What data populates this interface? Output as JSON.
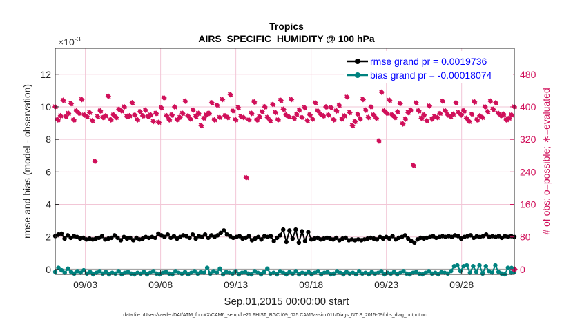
{
  "chart_data": {
    "type": "line",
    "title": "Tropics",
    "subtitle": "AIRS_SPECIFIC_HUMIDITY @ 100 hPa",
    "xlabel": "Sep.01,2015 00:00:00 start",
    "ylabel_left": "rmse and bias (model - observation)",
    "ylabel_right": "# of obs: o=possible; ∗=evaluated",
    "y_exponent_label": "×10",
    "y_exponent_power": "-3",
    "xlim": [
      1,
      31.5
    ],
    "ylim_left": [
      -0.3,
      13.6
    ],
    "ylim_right": [
      -0.3,
      13.6
    ],
    "x_ticks": [
      {
        "value": 3,
        "label": "09/03"
      },
      {
        "value": 8,
        "label": "09/08"
      },
      {
        "value": 13,
        "label": "09/13"
      },
      {
        "value": 18,
        "label": "09/18"
      },
      {
        "value": 23,
        "label": "09/23"
      },
      {
        "value": 28,
        "label": "09/28"
      }
    ],
    "y_ticks_left": [
      {
        "value": 0,
        "label": "0"
      },
      {
        "value": 2,
        "label": "2"
      },
      {
        "value": 4,
        "label": "4"
      },
      {
        "value": 6,
        "label": "6"
      },
      {
        "value": 8,
        "label": "8"
      },
      {
        "value": 10,
        "label": "10"
      },
      {
        "value": 12,
        "label": "12"
      }
    ],
    "y_ticks_right": [
      {
        "value": 0,
        "label": "0"
      },
      {
        "value": 2,
        "label": "80"
      },
      {
        "value": 4,
        "label": "160"
      },
      {
        "value": 6,
        "label": "240"
      },
      {
        "value": 8,
        "label": "320"
      },
      {
        "value": 10,
        "label": "400"
      },
      {
        "value": 12,
        "label": "480"
      }
    ],
    "legend_position": "top-right",
    "colors": {
      "rmse": "#000000",
      "bias": "#00827f",
      "obs": "#d0105a",
      "zero_line": "#a6a6a6",
      "grid": "#f2c6d6"
    },
    "series": [
      {
        "name": "rmse grand pr = 0.0019736",
        "key": "rmse",
        "values": [
          2.05,
          2.15,
          2.2,
          1.9,
          2.1,
          1.95,
          2.05,
          2.0,
          1.9,
          1.95,
          1.85,
          1.9,
          1.85,
          1.9,
          1.95,
          2.05,
          1.85,
          1.9,
          1.95,
          2.1,
          1.95,
          1.8,
          2.0,
          1.9,
          1.95,
          1.8,
          1.95,
          1.85,
          1.9,
          2.0,
          1.95,
          2.0,
          1.95,
          2.2,
          2.1,
          2.0,
          2.15,
          1.95,
          2.05,
          1.9,
          2.0,
          2.1,
          2.05,
          1.95,
          2.15,
          1.9,
          2.05,
          2.0,
          2.15,
          1.95,
          2.1,
          2.0,
          2.1,
          2.25,
          2.4,
          2.15,
          2.05,
          1.95,
          2.0,
          2.05,
          1.9,
          1.95,
          2.05,
          1.8,
          1.9,
          2.0,
          1.85,
          2.05,
          2.0,
          2.05,
          1.75,
          1.95,
          2.1,
          2.45,
          1.7,
          2.4,
          1.9,
          2.45,
          1.65,
          2.35,
          1.75,
          2.3,
          1.85,
          1.9,
          1.95,
          1.85,
          1.9,
          1.95,
          1.9,
          1.85,
          1.95,
          1.8,
          1.9,
          1.95,
          1.8,
          1.85,
          1.8,
          1.85,
          1.8,
          1.85,
          1.9,
          1.95,
          1.9,
          1.85,
          2.0,
          1.9,
          2.0,
          1.9,
          2.05,
          1.85,
          1.95,
          2.0,
          2.1,
          1.9,
          1.75,
          1.65,
          1.85,
          1.95,
          1.9,
          1.95,
          2.0,
          2.05,
          1.95,
          2.0,
          2.05,
          2.0,
          2.05,
          2.0,
          2.1,
          2.05,
          1.9,
          2.0,
          2.05,
          2.1,
          1.95,
          2.05,
          2.0,
          2.05,
          2.15,
          2.0,
          2.05,
          2.0,
          2.05,
          1.95,
          2.05,
          2.0,
          2.05,
          2.0
        ]
      },
      {
        "name": "bias grand pr = -0.00018074",
        "key": "bias",
        "values": [
          -0.15,
          0.1,
          -0.05,
          -0.2,
          0.05,
          -0.15,
          -0.25,
          -0.1,
          -0.2,
          -0.05,
          -0.25,
          -0.15,
          -0.3,
          -0.2,
          -0.1,
          -0.25,
          -0.15,
          -0.3,
          -0.2,
          -0.25,
          -0.1,
          -0.3,
          -0.2,
          -0.15,
          -0.25,
          -0.3,
          -0.2,
          -0.25,
          -0.15,
          -0.3,
          -0.2,
          -0.1,
          -0.25,
          -0.3,
          -0.2,
          -0.15,
          -0.25,
          -0.3,
          -0.1,
          -0.2,
          -0.25,
          -0.15,
          -0.3,
          -0.2,
          -0.1,
          -0.25,
          -0.15,
          -0.2,
          0.1,
          -0.25,
          -0.1,
          -0.2,
          0.05,
          -0.3,
          -0.15,
          -0.2,
          -0.25,
          -0.1,
          -0.3,
          -0.2,
          -0.15,
          -0.25,
          -0.3,
          -0.1,
          -0.2,
          -0.3,
          -0.15,
          0.05,
          -0.25,
          -0.2,
          -0.3,
          -0.1,
          -0.2,
          -0.3,
          -0.15,
          -0.25,
          -0.1,
          -0.3,
          -0.2,
          -0.25,
          -0.15,
          -0.3,
          -0.2,
          -0.1,
          -0.3,
          -0.2,
          -0.15,
          -0.3,
          -0.25,
          -0.1,
          -0.2,
          -0.3,
          -0.15,
          -0.25,
          -0.2,
          -0.3,
          -0.1,
          -0.25,
          -0.2,
          -0.3,
          -0.15,
          -0.25,
          -0.2,
          -0.1,
          -0.3,
          -0.2,
          -0.25,
          -0.15,
          -0.3,
          -0.2,
          -0.1,
          -0.25,
          -0.3,
          -0.2,
          -0.15,
          -0.25,
          -0.3,
          -0.2,
          -0.1,
          -0.25,
          -0.2,
          -0.3,
          -0.15,
          -0.2,
          -0.25,
          -0.1,
          0.2,
          0.25,
          -0.1,
          0.2,
          0.25,
          -0.2,
          0.2,
          -0.15,
          0.25,
          -0.25,
          0.2,
          -0.1,
          -0.2,
          0.25,
          -0.15,
          -0.25,
          -0.3,
          0.1,
          -0.2,
          -0.15
        ]
      },
      {
        "name": "obs",
        "key": "obs",
        "right_axis": true,
        "values": [
          10.0,
          9.2,
          9.45,
          10.4,
          9.4,
          9.6,
          10.2,
          9.2,
          9.75,
          9.6,
          10.45,
          9.5,
          9.4,
          9.65,
          9.15,
          6.65,
          9.4,
          9.75,
          9.35,
          9.45,
          10.65,
          9.2,
          9.5,
          9.35,
          9.85,
          9.75,
          10.0,
          9.4,
          9.45,
          10.25,
          9.5,
          9.2,
          9.7,
          9.45,
          9.8,
          9.4,
          9.5,
          9.1,
          9.6,
          9.05,
          9.95,
          10.55,
          9.45,
          9.2,
          9.5,
          10.0,
          9.2,
          9.35,
          9.6,
          10.35,
          9.45,
          9.25,
          9.8,
          9.4,
          9.6,
          8.85,
          9.3,
          9.5,
          9.6,
          10.25,
          9.2,
          10.1,
          9.35,
          10.45,
          9.45,
          9.35,
          10.75,
          9.75,
          9.2,
          9.95,
          9.4,
          9.35,
          5.65,
          9.2,
          9.6,
          10.3,
          9.2,
          9.4,
          9.7,
          10.0,
          9.35,
          9.15,
          10.15,
          9.65,
          9.2,
          10.4,
          9.85,
          9.5,
          9.4,
          10.45,
          9.3,
          9.55,
          9.8,
          9.35,
          9.95,
          9.15,
          9.5,
          9.25,
          10.25,
          9.75,
          9.55,
          9.45,
          10.0,
          9.5,
          9.95,
          9.2,
          9.75,
          10.1,
          9.25,
          9.45,
          10.6,
          9.65,
          8.85,
          9.1,
          9.55,
          9.25,
          10.45,
          9.8,
          9.35,
          10.0,
          9.5,
          9.3,
          7.9,
          10.9,
          9.75,
          9.6,
          10.4,
          9.5,
          9.35,
          9.7,
          10.2,
          8.95,
          9.25,
          9.65,
          9.8,
          6.4,
          10.25,
          9.75,
          9.3,
          9.5,
          9.15,
          10.05,
          9.25,
          9.4,
          9.35,
          9.6,
          10.35,
          9.75,
          9.5,
          9.4,
          9.55,
          10.25,
          9.65,
          9.5,
          9.75,
          9.3,
          9.1,
          9.55,
          10.3,
          9.2,
          9.45,
          9.35,
          10.0,
          9.7,
          10.35,
          9.85,
          10.25,
          9.6,
          9.45,
          9.55,
          9.2,
          9.3,
          9.5,
          10.0
        ]
      }
    ]
  },
  "footer_text": "data file: /Users/raeder/DAI/ATM_forcXX/CAM6_setup/f.e21.FHIST_BGC.f09_025.CAM6assim.011/Diags_NTrS_2015-09/obs_diag_output.nc",
  "end_markers": {
    "right_diamond": "obs-final",
    "right_circle": "possible-final"
  }
}
